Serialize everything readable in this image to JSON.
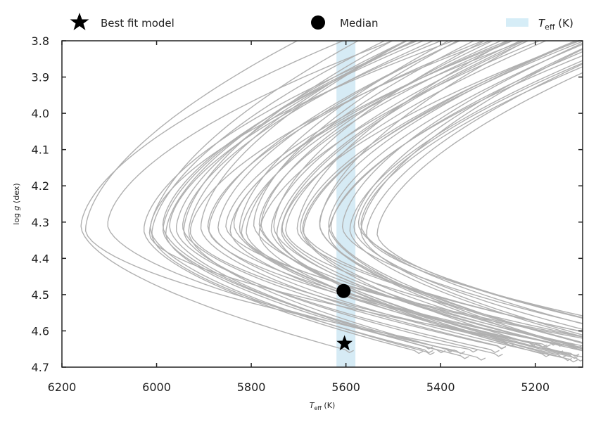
{
  "chart_data": {
    "type": "line",
    "xlabel": "T_eff (K)",
    "ylabel": "log g (dex)",
    "xlim": [
      6200,
      5100
    ],
    "ylim": [
      4.7,
      3.8
    ],
    "xticks": [
      6200,
      6000,
      5800,
      5600,
      5400,
      5200
    ],
    "yticks": [
      3.8,
      3.9,
      4.0,
      4.1,
      4.2,
      4.3,
      4.4,
      4.5,
      4.6,
      4.7
    ],
    "x_tick_labels": [
      "6200",
      "6000",
      "5800",
      "5600",
      "5400",
      "5200"
    ],
    "y_tick_labels": [
      "3.8",
      "3.9",
      "4.0",
      "4.1",
      "4.2",
      "4.3",
      "4.4",
      "4.5",
      "4.6",
      "4.7"
    ],
    "legend": {
      "placement": "top",
      "entries": [
        {
          "label": "Best fit model",
          "marker": "star"
        },
        {
          "label": "Median",
          "marker": "circle"
        },
        {
          "label": "T_eff (K)",
          "marker": "band"
        }
      ]
    },
    "teff_band": {
      "min": 5580,
      "max": 5620,
      "color": "#cfe8f3"
    },
    "median": {
      "teff": 5605,
      "logg": 4.49
    },
    "best_fit": {
      "teff": 5603,
      "logg": 4.635
    },
    "tracks_description_note": "",
    "track_vertex_teff": [
      6160,
      6150,
      6110,
      6035,
      6025,
      6015,
      6005,
      5995,
      5985,
      5975,
      5965,
      5955,
      5945,
      5935,
      5925,
      5915,
      5905,
      5895,
      5885,
      5875,
      5865,
      5855,
      5845,
      5835,
      5825,
      5815,
      5805,
      5795,
      5785,
      5775,
      5765,
      5755,
      5745,
      5735,
      5725,
      5715,
      5705,
      5695,
      5685,
      5675,
      5665,
      5655,
      5645,
      5635,
      5625,
      5615,
      5605,
      5595,
      5585,
      5575,
      5565,
      5555,
      5545
    ],
    "track_color": "#b0b0b0",
    "ms_end_logg": 4.32
  }
}
